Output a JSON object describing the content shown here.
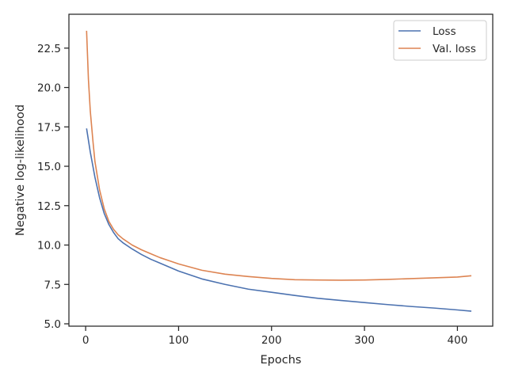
{
  "chart_data": {
    "type": "line",
    "xlabel": "Epochs",
    "ylabel": "Negative log-likelihood",
    "xlim": [
      -18,
      438
    ],
    "ylim": [
      4.85,
      24.65
    ],
    "xticks": [
      0,
      100,
      200,
      300,
      400
    ],
    "xtick_labels": [
      "0",
      "100",
      "200",
      "300",
      "400"
    ],
    "yticks": [
      5.0,
      7.5,
      10.0,
      12.5,
      15.0,
      17.5,
      20.0,
      22.5
    ],
    "ytick_labels": [
      "5.0",
      "7.5",
      "10.0",
      "12.5",
      "15.0",
      "17.5",
      "20.0",
      "22.5"
    ],
    "grid": false,
    "legend_position": "upper right",
    "series": [
      {
        "name": "Loss",
        "color": "#4c72b0",
        "x": [
          1,
          5,
          10,
          15,
          20,
          25,
          30,
          35,
          40,
          50,
          60,
          70,
          80,
          90,
          100,
          125,
          150,
          175,
          200,
          225,
          250,
          275,
          300,
          325,
          350,
          375,
          400,
          415
        ],
        "values": [
          17.4,
          15.9,
          14.3,
          13.0,
          12.0,
          11.3,
          10.8,
          10.4,
          10.15,
          9.75,
          9.4,
          9.1,
          8.85,
          8.6,
          8.35,
          7.85,
          7.5,
          7.2,
          7.0,
          6.8,
          6.62,
          6.48,
          6.35,
          6.22,
          6.1,
          6.0,
          5.88,
          5.8
        ]
      },
      {
        "name": "Val. loss",
        "color": "#dd8452",
        "x": [
          1,
          3,
          5,
          8,
          10,
          15,
          20,
          25,
          30,
          35,
          40,
          50,
          60,
          70,
          80,
          90,
          100,
          125,
          150,
          175,
          200,
          225,
          250,
          275,
          300,
          325,
          350,
          375,
          400,
          415
        ],
        "values": [
          23.6,
          20.5,
          18.5,
          16.5,
          15.3,
          13.5,
          12.3,
          11.5,
          11.0,
          10.65,
          10.4,
          10.0,
          9.7,
          9.45,
          9.2,
          9.0,
          8.8,
          8.4,
          8.15,
          8.0,
          7.88,
          7.8,
          7.78,
          7.77,
          7.78,
          7.82,
          7.87,
          7.92,
          7.97,
          8.05
        ]
      }
    ]
  }
}
